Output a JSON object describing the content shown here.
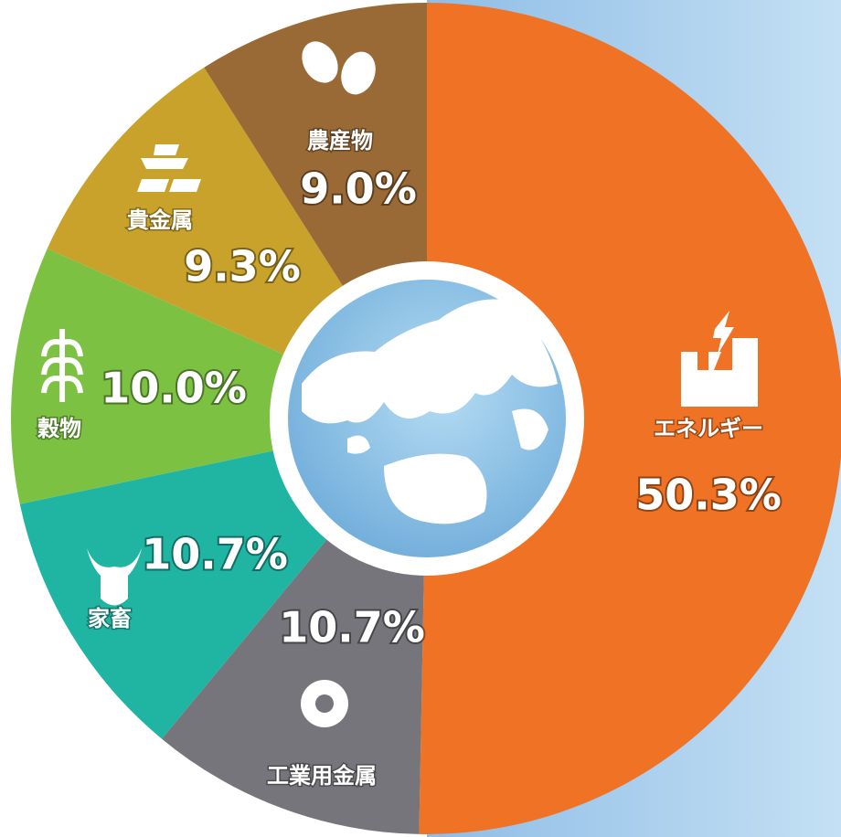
{
  "chart_data": {
    "type": "pie",
    "categories": [
      "エネルギー",
      "工業用金属",
      "家畜",
      "穀物",
      "貴金属",
      "農産物"
    ],
    "values": [
      50.3,
      10.7,
      10.7,
      10.0,
      9.3,
      9.0
    ],
    "value_labels": [
      "50.3%",
      "10.7%",
      "10.7%",
      "10.0%",
      "9.3%",
      "9.0%"
    ],
    "colors": [
      "#f07224",
      "#75757b",
      "#1fb5a2",
      "#7cc142",
      "#c9a22b",
      "#9a6a36"
    ]
  }
}
